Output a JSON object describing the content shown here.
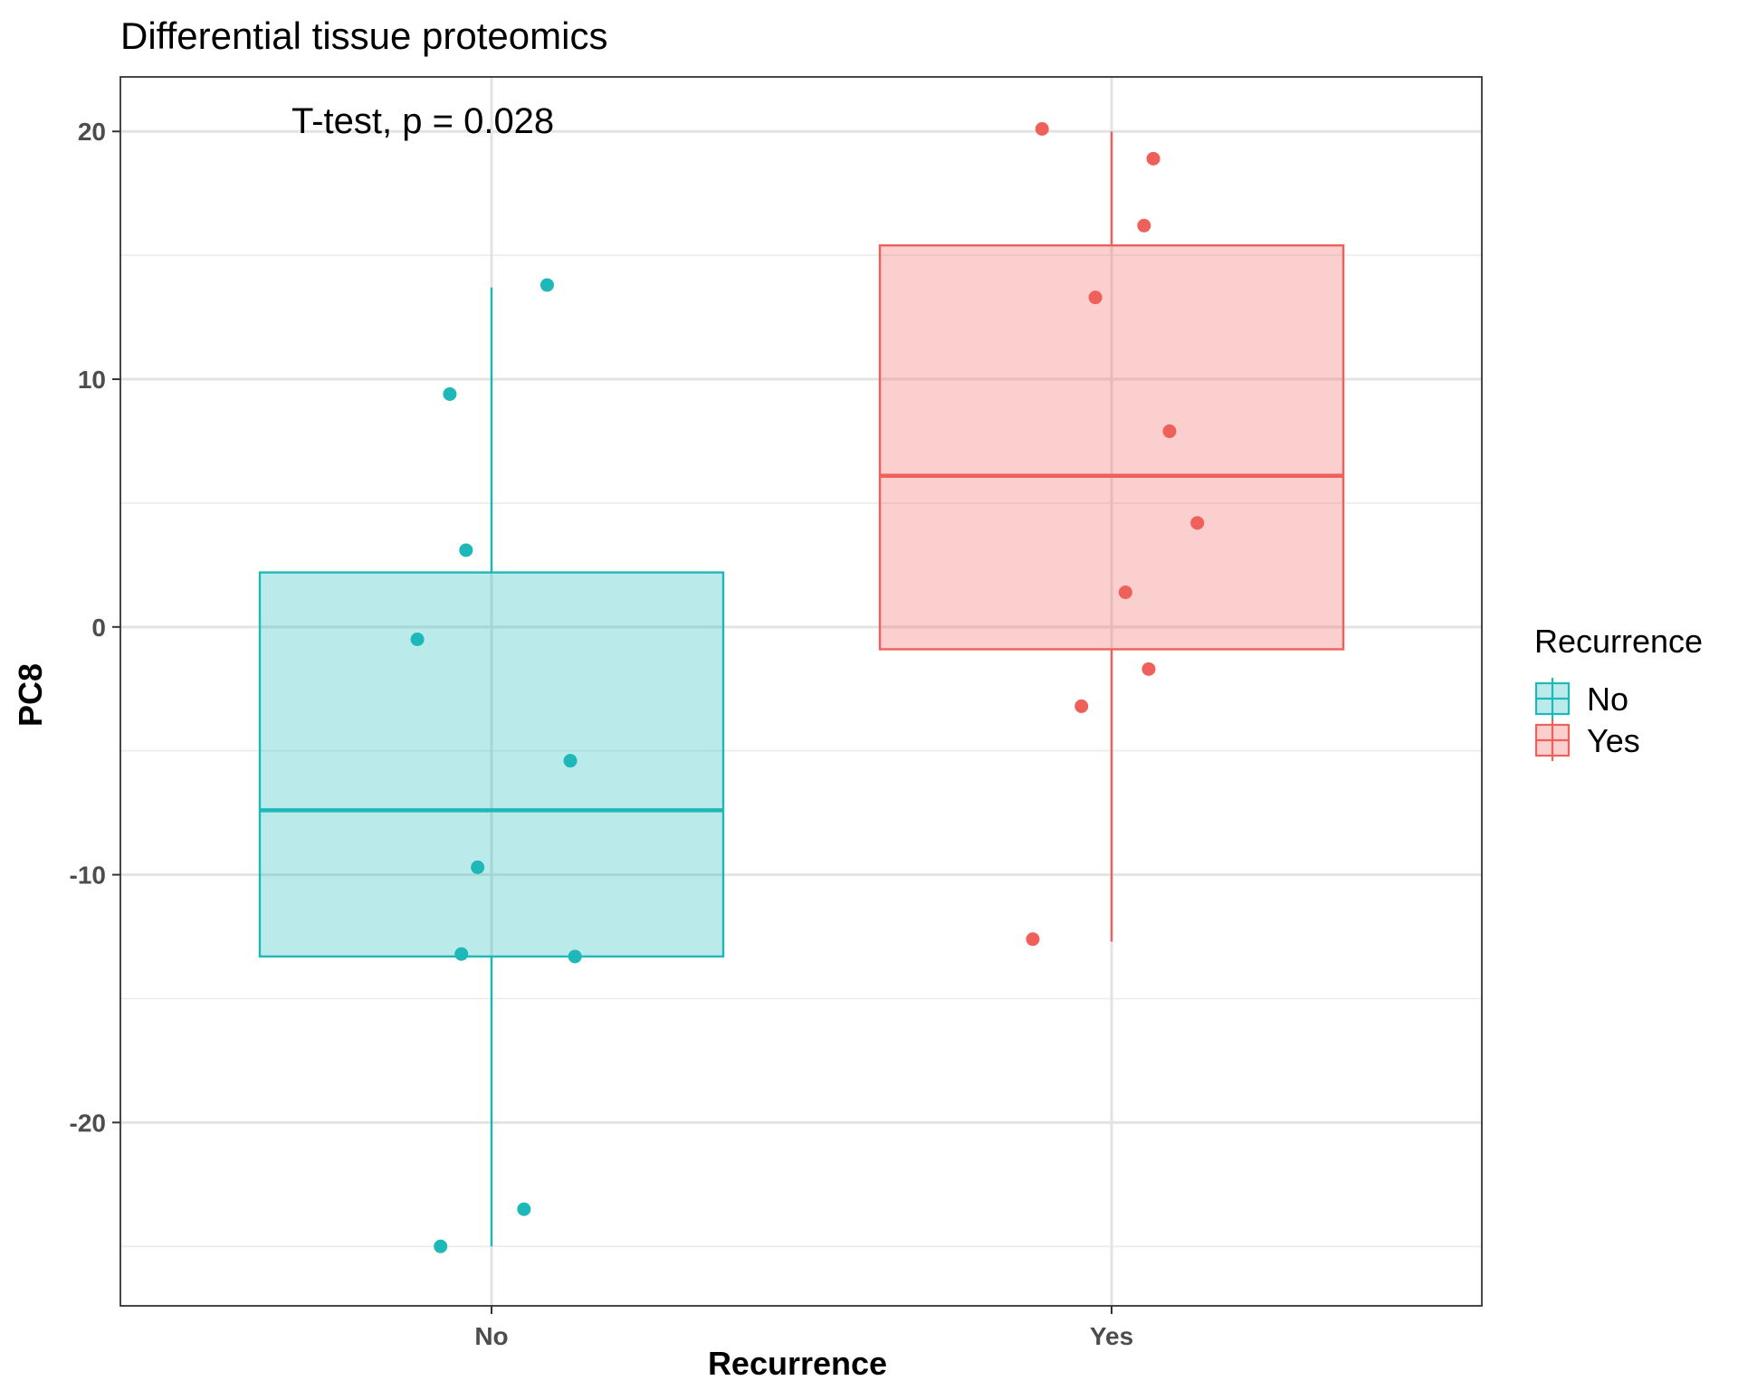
{
  "chart_data": {
    "type": "boxplot",
    "title": "Differential tissue proteomics",
    "annotation": "T-test, p = 0.028",
    "xlabel": "Recurrence",
    "ylabel": "PC8",
    "categories": [
      "No",
      "Yes"
    ],
    "ylim": [
      -27.4,
      22.2
    ],
    "yticks": [
      -20,
      -10,
      0,
      10,
      20
    ],
    "yticks_labels": [
      "-20",
      "-10",
      "0",
      "10",
      "20"
    ],
    "grid": true,
    "legend": {
      "title": "Recurrence",
      "position": "right",
      "entries": [
        "No",
        "Yes"
      ]
    },
    "colors": {
      "No": "#1fb8b8",
      "Yes": "#f0605a"
    },
    "boxes": [
      {
        "category": "No",
        "whisker_low": -25.0,
        "q1": -13.3,
        "median": -7.4,
        "q3": 2.2,
        "whisker_high": 13.7
      },
      {
        "category": "Yes",
        "whisker_low": -12.7,
        "q1": -0.9,
        "median": 6.1,
        "q3": 15.4,
        "whisker_high": 20.0
      }
    ],
    "points": [
      {
        "category": "No",
        "jitter": 0.12,
        "value": 13.8
      },
      {
        "category": "No",
        "jitter": -0.09,
        "value": 9.4
      },
      {
        "category": "No",
        "jitter": -0.055,
        "value": 3.1
      },
      {
        "category": "No",
        "jitter": -0.16,
        "value": -0.5
      },
      {
        "category": "No",
        "jitter": 0.17,
        "value": -5.4
      },
      {
        "category": "No",
        "jitter": -0.03,
        "value": -9.7
      },
      {
        "category": "No",
        "jitter": -0.065,
        "value": -13.2
      },
      {
        "category": "No",
        "jitter": 0.18,
        "value": -13.3
      },
      {
        "category": "No",
        "jitter": 0.07,
        "value": -23.5
      },
      {
        "category": "No",
        "jitter": -0.11,
        "value": -25.0
      },
      {
        "category": "Yes",
        "jitter": -0.15,
        "value": 20.1
      },
      {
        "category": "Yes",
        "jitter": 0.09,
        "value": 18.9
      },
      {
        "category": "Yes",
        "jitter": 0.07,
        "value": 16.2
      },
      {
        "category": "Yes",
        "jitter": -0.035,
        "value": 13.3
      },
      {
        "category": "Yes",
        "jitter": 0.125,
        "value": 7.9
      },
      {
        "category": "Yes",
        "jitter": 0.185,
        "value": 4.2
      },
      {
        "category": "Yes",
        "jitter": 0.03,
        "value": 1.4
      },
      {
        "category": "Yes",
        "jitter": 0.08,
        "value": -1.7
      },
      {
        "category": "Yes",
        "jitter": -0.065,
        "value": -3.2
      },
      {
        "category": "Yes",
        "jitter": -0.17,
        "value": -12.6
      }
    ]
  }
}
